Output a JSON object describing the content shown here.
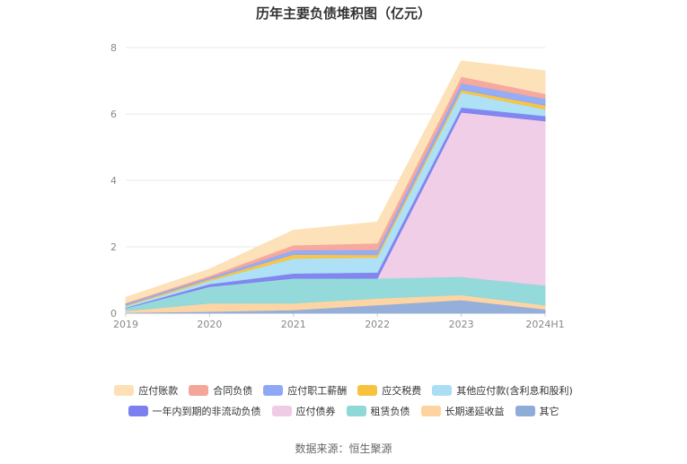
{
  "chart_data": {
    "type": "area",
    "stacked": true,
    "title": "历年主要负债堆积图（亿元）",
    "categories": [
      "2019",
      "2020",
      "2021",
      "2022",
      "2023",
      "2024H1"
    ],
    "ylim": [
      0,
      8
    ],
    "yticks": [
      "0",
      "2",
      "4",
      "6",
      "8"
    ],
    "grid": true,
    "legend_position": "bottom",
    "series": [
      {
        "name": "其它",
        "color": "#8fabd8",
        "values": [
          0.02,
          0.05,
          0.1,
          0.25,
          0.4,
          0.12
        ]
      },
      {
        "name": "长期递延收益",
        "color": "#fdd3a0",
        "values": [
          0.05,
          0.25,
          0.2,
          0.2,
          0.15,
          0.12
        ]
      },
      {
        "name": "租赁负债",
        "color": "#8fd8d8",
        "values": [
          0.08,
          0.5,
          0.75,
          0.6,
          0.55,
          0.6
        ]
      },
      {
        "name": "应付债券",
        "color": "#f0cbe6",
        "values": [
          0,
          0,
          0,
          0,
          4.95,
          4.95
        ]
      },
      {
        "name": "一年内到期的非流动负债",
        "color": "#7b7fef",
        "values": [
          0.02,
          0.08,
          0.15,
          0.18,
          0.15,
          0.15
        ]
      },
      {
        "name": "其他应付款(含利息和股利)",
        "color": "#aadef5",
        "values": [
          0.05,
          0.1,
          0.45,
          0.45,
          0.45,
          0.2
        ]
      },
      {
        "name": "应交税费",
        "color": "#f9c23c",
        "values": [
          0.02,
          0.05,
          0.12,
          0.08,
          0.08,
          0.12
        ]
      },
      {
        "name": "应付职工薪酬",
        "color": "#8fa8f5",
        "values": [
          0.05,
          0.05,
          0.13,
          0.15,
          0.2,
          0.2
        ]
      },
      {
        "name": "合同负债",
        "color": "#f5a59a",
        "values": [
          0.02,
          0.05,
          0.15,
          0.2,
          0.2,
          0.15
        ]
      },
      {
        "name": "应付账款",
        "color": "#fde0b5",
        "values": [
          0.17,
          0.2,
          0.45,
          0.64,
          0.47,
          0.69
        ]
      }
    ],
    "legend_rows": [
      [
        "应付账款",
        "合同负债",
        "应付职工薪酬",
        "应交税费",
        "其他应付款(含利息和股利)"
      ],
      [
        "一年内到期的非流动负债",
        "应付债券",
        "租赁负债",
        "长期递延收益",
        "其它"
      ]
    ]
  },
  "source_text": "数据来源：恒生聚源"
}
